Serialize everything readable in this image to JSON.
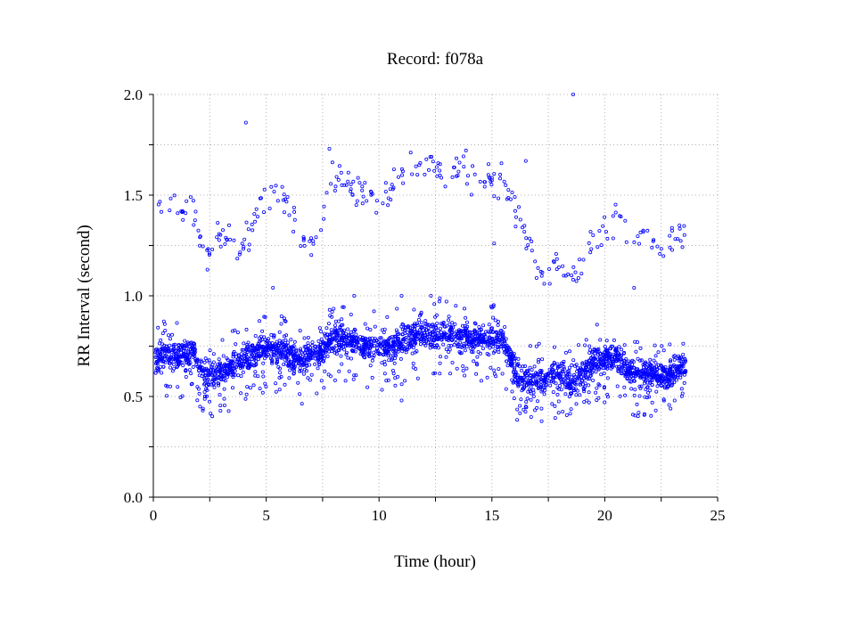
{
  "chart_data": {
    "type": "scatter",
    "title": "Record:  f078a",
    "xlabel": "Time (hour)",
    "ylabel": "RR Interval (second)",
    "xlim": [
      0,
      25
    ],
    "ylim": [
      0,
      2
    ],
    "x_ticks": [
      0,
      5,
      10,
      15,
      20,
      25
    ],
    "x_tick_labels": [
      "0",
      "5",
      "10",
      "15",
      "20",
      "25"
    ],
    "y_ticks": [
      0,
      0.5,
      1,
      1.5,
      2
    ],
    "y_tick_labels": [
      "0.0",
      "0.5",
      "1.0",
      "1.5",
      "2.0"
    ],
    "grid": true,
    "grid_style": "dotted",
    "marker": "open-circle",
    "colors": {
      "points": "#0000ff",
      "grid": "#b0b0b0",
      "axis": "#000000"
    },
    "series": [
      {
        "x_range": [
          0.1,
          23.6
        ],
        "description_of_trend_points": [
          [
            0.1,
            0.7
          ],
          [
            1.0,
            0.7
          ],
          [
            1.8,
            0.72
          ],
          [
            2.2,
            0.6
          ],
          [
            3.0,
            0.62
          ],
          [
            3.8,
            0.66
          ],
          [
            4.6,
            0.72
          ],
          [
            5.5,
            0.74
          ],
          [
            6.5,
            0.68
          ],
          [
            7.2,
            0.7
          ],
          [
            8.0,
            0.8
          ],
          [
            8.8,
            0.78
          ],
          [
            9.5,
            0.75
          ],
          [
            10.5,
            0.74
          ],
          [
            11.5,
            0.8
          ],
          [
            12.5,
            0.81
          ],
          [
            13.5,
            0.8
          ],
          [
            14.5,
            0.79
          ],
          [
            15.5,
            0.78
          ],
          [
            16.2,
            0.58
          ],
          [
            17.0,
            0.58
          ],
          [
            18.0,
            0.62
          ],
          [
            18.6,
            0.56
          ],
          [
            19.5,
            0.68
          ],
          [
            20.5,
            0.7
          ],
          [
            21.2,
            0.62
          ],
          [
            22.0,
            0.62
          ],
          [
            22.8,
            0.6
          ],
          [
            23.6,
            0.66
          ]
        ],
        "upper_band_points": [
          [
            0.2,
            1.48
          ],
          [
            0.5,
            1.35
          ],
          [
            0.8,
            1.45
          ],
          [
            1.2,
            1.42
          ],
          [
            1.6,
            1.48
          ],
          [
            2.3,
            1.18
          ],
          [
            2.8,
            1.28
          ],
          [
            3.4,
            1.3
          ],
          [
            3.9,
            1.22
          ],
          [
            4.5,
            1.4
          ],
          [
            5.0,
            1.5
          ],
          [
            5.6,
            1.5
          ],
          [
            6.2,
            1.4
          ],
          [
            6.8,
            1.25
          ],
          [
            7.4,
            1.3
          ],
          [
            7.9,
            1.58
          ],
          [
            8.4,
            1.6
          ],
          [
            9.0,
            1.52
          ],
          [
            9.6,
            1.52
          ],
          [
            10.2,
            1.48
          ],
          [
            10.8,
            1.6
          ],
          [
            11.4,
            1.64
          ],
          [
            12.0,
            1.66
          ],
          [
            12.6,
            1.62
          ],
          [
            13.2,
            1.6
          ],
          [
            13.8,
            1.64
          ],
          [
            14.4,
            1.58
          ],
          [
            15.0,
            1.58
          ],
          [
            15.6,
            1.56
          ],
          [
            16.2,
            1.4
          ],
          [
            16.8,
            1.18
          ],
          [
            17.3,
            1.08
          ],
          [
            17.9,
            1.18
          ],
          [
            18.4,
            1.1
          ],
          [
            19.0,
            1.16
          ],
          [
            19.6,
            1.3
          ],
          [
            20.2,
            1.36
          ],
          [
            20.8,
            1.38
          ],
          [
            21.3,
            1.32
          ],
          [
            21.9,
            1.26
          ],
          [
            22.5,
            1.22
          ],
          [
            23.2,
            1.3
          ],
          [
            23.6,
            1.3
          ]
        ],
        "outliers": [
          [
            4.1,
            1.86
          ],
          [
            18.6,
            2.0
          ],
          [
            16.5,
            1.67
          ],
          [
            7.8,
            1.73
          ],
          [
            5.3,
            1.04
          ],
          [
            8.9,
            1.0
          ],
          [
            11.0,
            1.0
          ],
          [
            12.3,
            1.0
          ],
          [
            21.3,
            1.04
          ],
          [
            15.1,
            1.26
          ],
          [
            2.2,
            0.44
          ],
          [
            21.5,
            0.42
          ],
          [
            11.0,
            0.48
          ],
          [
            16.5,
            0.45
          ]
        ]
      }
    ]
  }
}
